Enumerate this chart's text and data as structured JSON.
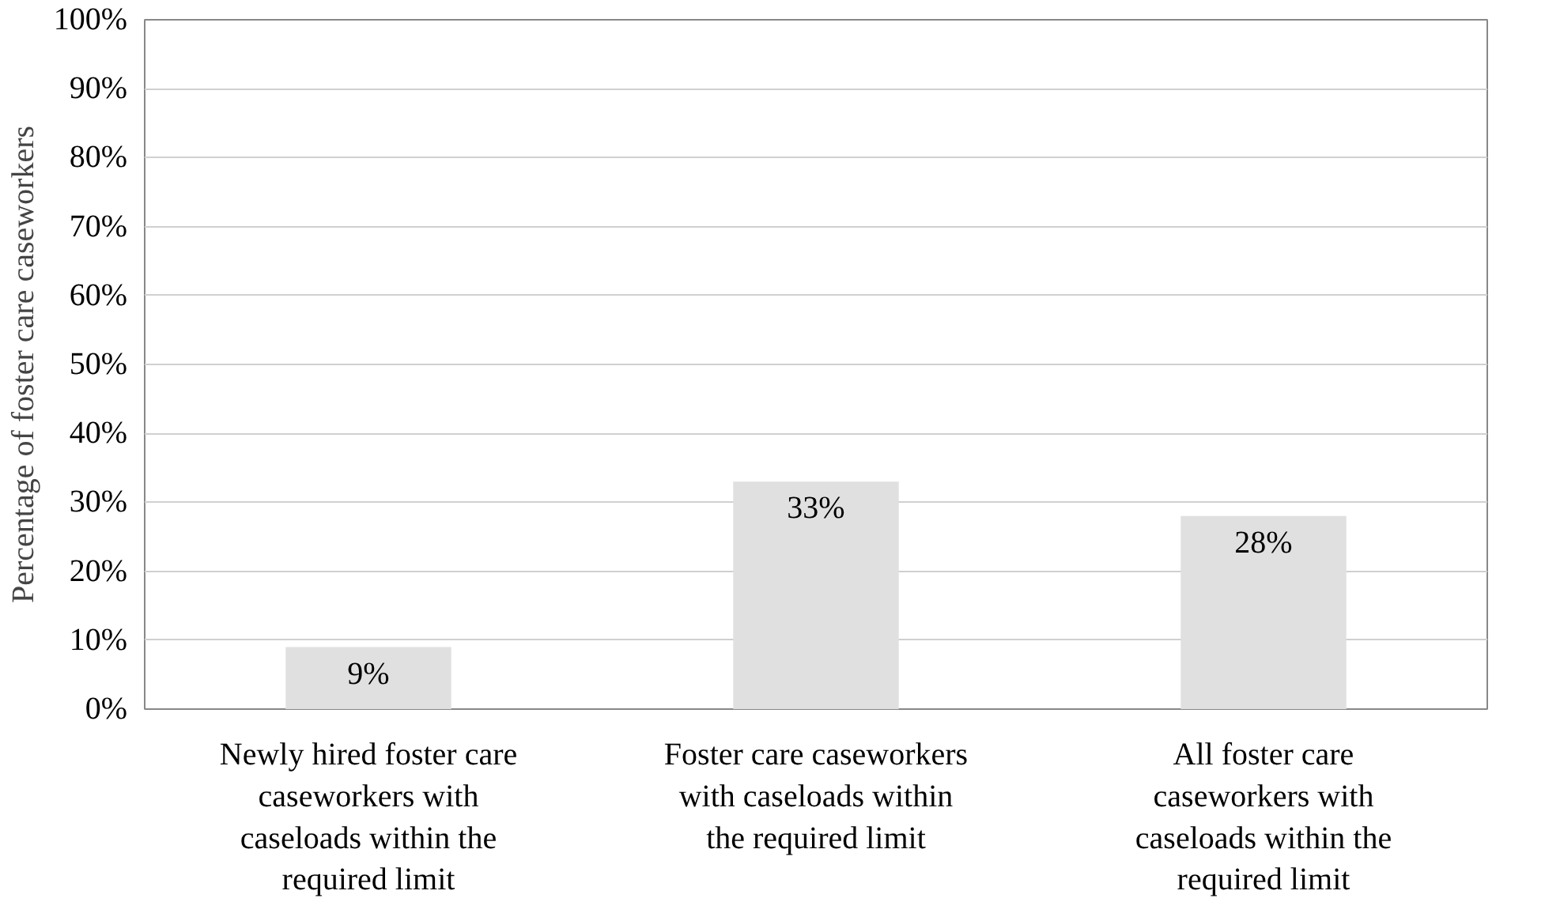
{
  "chart_data": {
    "type": "bar",
    "categories": [
      "Newly hired foster care caseworkers with caseloads within the required limit",
      "Foster care caseworkers with caseloads within the required limit",
      "All foster care caseworkers with caseloads within the required limit"
    ],
    "values": [
      9,
      33,
      28
    ],
    "value_labels": [
      "9%",
      "33%",
      "28%"
    ],
    "color": "#e0e0e0",
    "ylabel": "Percentage of foster care caseworkers",
    "ylim": [
      0,
      100
    ],
    "yticks": [
      {
        "value": 0,
        "label": "0%"
      },
      {
        "value": 10,
        "label": "10%"
      },
      {
        "value": 20,
        "label": "20%"
      },
      {
        "value": 30,
        "label": "30%"
      },
      {
        "value": 40,
        "label": "40%"
      },
      {
        "value": 50,
        "label": "50%"
      },
      {
        "value": 60,
        "label": "60%"
      },
      {
        "value": 70,
        "label": "70%"
      },
      {
        "value": 80,
        "label": "80%"
      },
      {
        "value": 90,
        "label": "90%"
      },
      {
        "value": 100,
        "label": "100%"
      }
    ],
    "grid": "y"
  }
}
